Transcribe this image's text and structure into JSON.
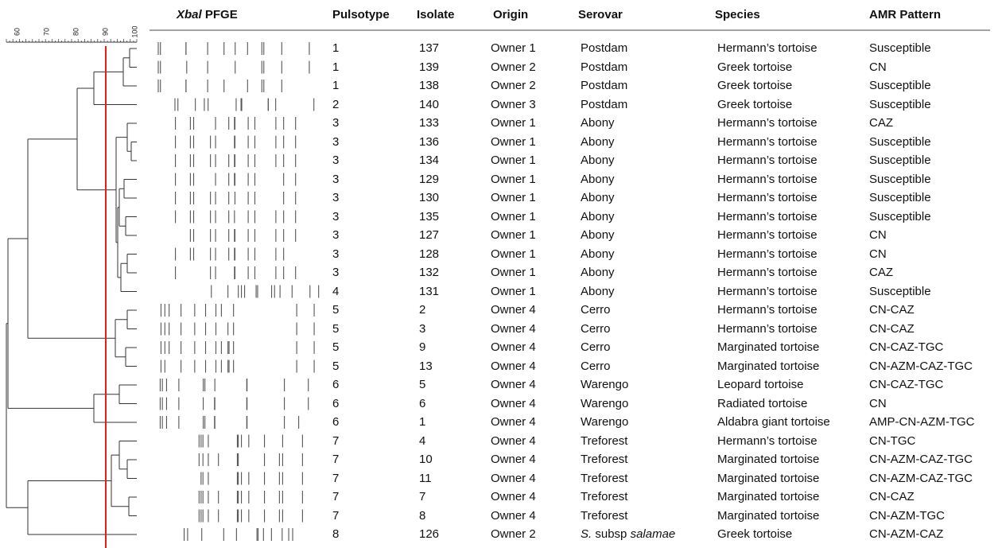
{
  "scale_labels": [
    "60",
    "70",
    "80",
    "90",
    "100"
  ],
  "gel_header": {
    "italic": "Xbal",
    "text": "PFGE"
  },
  "columns": [
    "Pulsotype",
    "Isolate",
    "Origin",
    "Serovar",
    "Species",
    "AMR Pattern"
  ],
  "rows": [
    [
      1,
      137,
      "Owner 1",
      "Postdam",
      "Hermann’s tortoise",
      "Susceptible"
    ],
    [
      1,
      139,
      "Owner 2",
      "Postdam",
      "Greek tortoise",
      "CN"
    ],
    [
      1,
      138,
      "Owner 2",
      "Postdam",
      "Greek tortoise",
      "Susceptible"
    ],
    [
      2,
      140,
      "Owner 3",
      "Postdam",
      "Greek tortoise",
      "Susceptible"
    ],
    [
      3,
      133,
      "Owner 1",
      "Abony",
      "Hermann’s tortoise",
      "CAZ"
    ],
    [
      3,
      136,
      "Owner 1",
      "Abony",
      "Hermann’s tortoise",
      "Susceptible"
    ],
    [
      3,
      134,
      "Owner 1",
      "Abony",
      "Hermann’s tortoise",
      "Susceptible"
    ],
    [
      3,
      129,
      "Owner 1",
      "Abony",
      "Hermann’s tortoise",
      "Susceptible"
    ],
    [
      3,
      130,
      "Owner 1",
      "Abony",
      "Hermann’s tortoise",
      "Susceptible"
    ],
    [
      3,
      135,
      "Owner 1",
      "Abony",
      "Hermann’s tortoise",
      "Susceptible"
    ],
    [
      3,
      127,
      "Owner 1",
      "Abony",
      "Hermann’s tortoise",
      "CN"
    ],
    [
      3,
      128,
      "Owner 1",
      "Abony",
      "Hermann’s tortoise",
      "CN"
    ],
    [
      3,
      132,
      "Owner 1",
      "Abony",
      "Hermann’s tortoise",
      "CAZ"
    ],
    [
      4,
      131,
      "Owner 1",
      "Abony",
      "Hermann’s tortoise",
      "Susceptible"
    ],
    [
      5,
      2,
      "Owner 4",
      "Cerro",
      "Hermann’s tortoise",
      "CN-CAZ"
    ],
    [
      5,
      3,
      "Owner 4",
      "Cerro",
      "Hermann’s tortoise",
      "CN-CAZ"
    ],
    [
      5,
      9,
      "Owner 4",
      "Cerro",
      "Marginated tortoise",
      "CN-CAZ-TGC"
    ],
    [
      5,
      13,
      "Owner 4",
      "Cerro",
      "Marginated tortoise",
      "CN-AZM-CAZ-TGC"
    ],
    [
      6,
      5,
      "Owner 4",
      "Warengo",
      "Leopard tortoise",
      "CN-CAZ-TGC"
    ],
    [
      6,
      6,
      "Owner 4",
      "Warengo",
      "Radiated tortoise",
      "CN"
    ],
    [
      6,
      1,
      "Owner 4",
      "Warengo",
      "Aldabra giant tortoise",
      "AMP-CN-AZM-TGC"
    ],
    [
      7,
      4,
      "Owner 4",
      "Treforest",
      "Hermann’s tortoise",
      "CN-TGC"
    ],
    [
      7,
      10,
      "Owner 4",
      "Treforest",
      "Marginated tortoise",
      "CN-AZM-CAZ-TGC"
    ],
    [
      7,
      11,
      "Owner 4",
      "Treforest",
      "Marginated tortoise",
      "CN-AZM-CAZ-TGC"
    ],
    [
      7,
      7,
      "Owner 4",
      "Treforest",
      "Marginated tortoise",
      "CN-CAZ"
    ],
    [
      7,
      8,
      "Owner 4",
      "Treforest",
      "Marginated tortoise",
      "CN-AZM-TGC"
    ],
    [
      8,
      126,
      "Owner 2",
      {
        "parts": [
          {
            "text": "S.",
            "italic": true
          },
          {
            "text": "subsp"
          },
          {
            "text": "salamae",
            "italic": true
          }
        ]
      },
      "Greek tortoise",
      "CN-AZM-CAZ"
    ]
  ]
}
